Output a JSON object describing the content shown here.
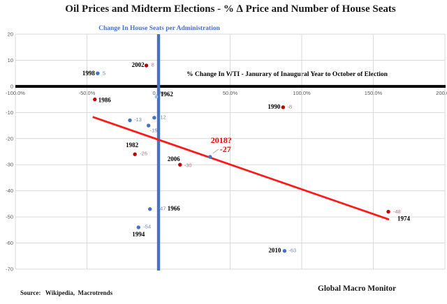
{
  "chart_data": {
    "type": "scatter",
    "title": "Oil Prices and Midterm Elections - % ∆ Price and Number of House Seats",
    "top_axis_label": "Change In House Seats per Administration",
    "x_axis_label": "% Change In WTI - Janurary  of Inaugural  Year to October of Election",
    "xlim": [
      -100,
      200
    ],
    "ylim": [
      -70,
      20
    ],
    "grid": true,
    "legend": "none",
    "xticks": [
      {
        "v": -100,
        "label": "-100.0%"
      },
      {
        "v": -50,
        "label": "-50.0%"
      },
      {
        "v": 0,
        "label": "0.0%"
      },
      {
        "v": 50,
        "label": "50.0%"
      },
      {
        "v": 100,
        "label": "100.0%"
      },
      {
        "v": 150,
        "label": "150.0%"
      },
      {
        "v": 200,
        "label": "200.0%"
      }
    ],
    "yticks": [
      {
        "v": 20,
        "label": "20"
      },
      {
        "v": 10,
        "label": "10"
      },
      {
        "v": 0,
        "label": "0"
      },
      {
        "v": -10,
        "label": "-10"
      },
      {
        "v": -20,
        "label": "-20"
      },
      {
        "v": -30,
        "label": "-30"
      },
      {
        "v": -40,
        "label": "-40"
      },
      {
        "v": -50,
        "label": "-50"
      },
      {
        "v": -60,
        "label": "-60"
      },
      {
        "v": -70,
        "label": "-70"
      }
    ],
    "colors": {
      "grid": "#D9D9D9",
      "zero_line": "#000000",
      "vertical_line": "#4472C4",
      "trend": "#FF1A1A",
      "dot_blue": "#4472C4",
      "dot_red": "#C00000",
      "dot_light": "#9DC3E6",
      "val_blue": "#7189B7",
      "val_red": "#AE7A7A",
      "annotation": "#FF0000",
      "leader": "#A6A6A6"
    },
    "points": [
      {
        "year": "1962",
        "x": -1.5,
        "y": -4,
        "series": "light",
        "value": "",
        "year_anchor": "start",
        "year_dx": 6,
        "year_dy": -4
      },
      {
        "year": "1966",
        "x": -6,
        "y": -47,
        "series": "blue",
        "value": "-47",
        "value_anchor": "start",
        "value_dx": 12,
        "value_dy": -1,
        "year_anchor": "start",
        "year_dx": 25,
        "year_dy": -1
      },
      {
        "year": "1974",
        "x": 160.5,
        "y": -48,
        "series": "red",
        "value": "-48",
        "value_anchor": "start",
        "value_dx": 7,
        "value_dy": 0,
        "year_anchor": "start",
        "year_dx": 13,
        "year_dy": 10
      },
      {
        "year": "1982",
        "x": -16.5,
        "y": -26,
        "series": "red",
        "value": "-26",
        "value_anchor": "start",
        "value_dx": 7,
        "value_dy": -1,
        "year_anchor": "end",
        "year_dx": 5,
        "year_dy": -13
      },
      {
        "year": "1986",
        "x": -44.5,
        "y": -5,
        "series": "red",
        "value": "",
        "year_anchor": "start",
        "year_dx": 5,
        "year_dy": 1
      },
      {
        "year": "1990",
        "x": 87,
        "y": -8,
        "series": "red",
        "value": "-8",
        "value_anchor": "start",
        "value_dx": 6,
        "value_dy": -1,
        "year_anchor": "end",
        "year_dx": -4,
        "year_dy": -1
      },
      {
        "year": "1994",
        "x": -14,
        "y": -54,
        "series": "blue",
        "value": "-54",
        "value_anchor": "start",
        "value_dx": 7,
        "value_dy": -1,
        "year_anchor": "middle",
        "year_dx": 0,
        "year_dy": 10
      },
      {
        "year": "1998",
        "x": -42.5,
        "y": 5,
        "series": "blue",
        "value": "5",
        "value_anchor": "start",
        "value_dx": 7,
        "value_dy": 0,
        "year_anchor": "end",
        "year_dx": -4,
        "year_dy": 0
      },
      {
        "year": "2002",
        "x": -8.5,
        "y": 8,
        "series": "red",
        "value": "8",
        "value_anchor": "start",
        "value_dx": 7,
        "value_dy": -1,
        "year_anchor": "end",
        "year_dx": -3,
        "year_dy": -1
      },
      {
        "year": "2006",
        "x": 15,
        "y": -30,
        "series": "red",
        "value": "-30",
        "value_anchor": "start",
        "value_dx": 6,
        "value_dy": 1,
        "year_anchor": "end",
        "year_dx": 0,
        "year_dy": -8
      },
      {
        "year": "2010",
        "x": 88,
        "y": -63,
        "series": "blue",
        "value": "-63",
        "value_anchor": "start",
        "value_dx": 6,
        "value_dy": -1,
        "year_anchor": "end",
        "year_dx": -5,
        "year_dy": -1
      },
      {
        "year": "",
        "x": -20,
        "y": -13,
        "series": "blue",
        "value": "-13",
        "value_anchor": "start",
        "value_dx": 6,
        "value_dy": -1
      },
      {
        "year": "",
        "x": -3,
        "y": -12,
        "series": "blue",
        "value": "-12",
        "value_anchor": "start",
        "value_dx": 6,
        "value_dy": -1
      },
      {
        "year": "",
        "x": -7,
        "y": -15,
        "series": "blue",
        "value": "-15",
        "value_anchor": "start",
        "value_dx": 2,
        "value_dy": 7
      },
      {
        "year": "",
        "x": 36,
        "y": -27,
        "series": "blue",
        "value": "",
        "annotated": true
      }
    ],
    "annotation": {
      "label": "2018?",
      "value": "-27",
      "x": 36,
      "y": -27,
      "label_dx": 16,
      "label_dy": -24,
      "value_dx": 22,
      "value_dy": -11,
      "leader": [
        4,
        -5,
        12,
        -11
      ]
    },
    "trendline": {
      "x1": -46,
      "y1": -11.7,
      "x2": 161,
      "y2": -51
    }
  },
  "footer": {
    "source": "Source:   Wikipedia,  Macrotrends",
    "brand": "Global Macro Monitor"
  }
}
